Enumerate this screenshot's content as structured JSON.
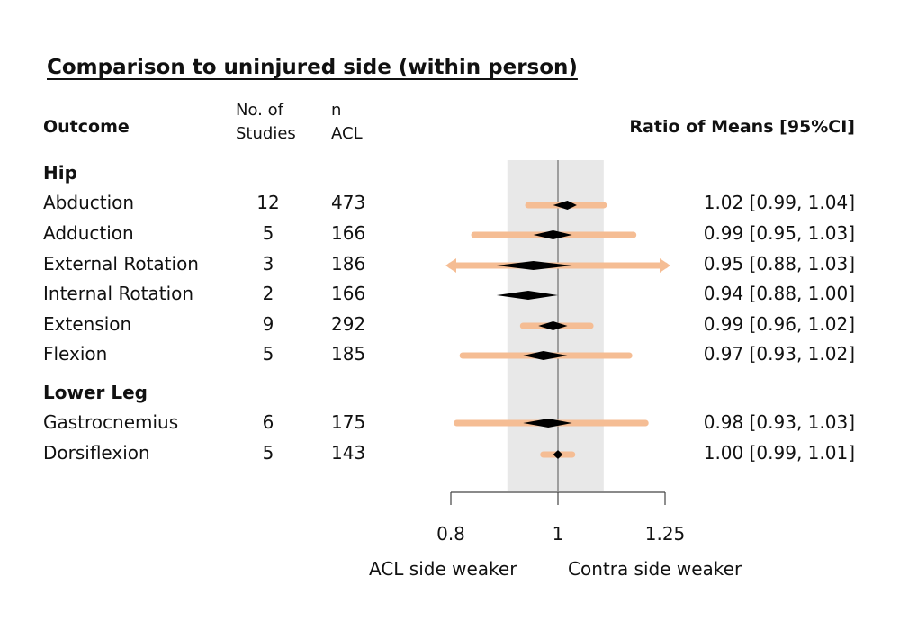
{
  "title": "Comparison to uninjured side (within person)",
  "headers": {
    "outcome": "Outcome",
    "studies_line1": "No. of",
    "studies_line2": "Studies",
    "n_line1": "n",
    "n_line2": "ACL",
    "ratio": "Ratio of Means [95%CI]"
  },
  "footer": {
    "left": "ACL side weaker",
    "right": "Contra side weaker"
  },
  "colors": {
    "ci_bar": "#f5bd94",
    "shade": "#e8e8e8",
    "diamond": "#000000"
  },
  "chart_data": {
    "type": "forest",
    "x_scale": "log",
    "x_ticks": [
      0.8,
      1,
      1.25
    ],
    "x_tick_labels": [
      "0.8",
      "1",
      "1.25"
    ],
    "reference_line": 1,
    "shaded_region": [
      0.9,
      1.1
    ],
    "sections": [
      {
        "name": "Hip",
        "rows": [
          {
            "outcome": "Abduction",
            "studies": "12",
            "n": "473",
            "ratio_text": "1.02 [0.99, 1.04]",
            "est": 1.02,
            "lo": 0.99,
            "hi": 1.04,
            "pi": [
              0.94,
              1.1
            ],
            "arrows": false
          },
          {
            "outcome": "Adduction",
            "studies": "5",
            "n": "166",
            "ratio_text": "0.99 [0.95, 1.03]",
            "est": 0.99,
            "lo": 0.95,
            "hi": 1.03,
            "pi": [
              0.84,
              1.17
            ],
            "arrows": false
          },
          {
            "outcome": "External Rotation",
            "studies": "3",
            "n": "186",
            "ratio_text": "0.95 [0.88, 1.03]",
            "est": 0.95,
            "lo": 0.88,
            "hi": 1.03,
            "pi": [
              0.8,
              1.25
            ],
            "arrows": true
          },
          {
            "outcome": "Internal Rotation",
            "studies": "2",
            "n": "166",
            "ratio_text": "0.94 [0.88, 1.00]",
            "est": 0.94,
            "lo": 0.88,
            "hi": 1.0,
            "pi": null,
            "arrows": false
          },
          {
            "outcome": "Extension",
            "studies": "9",
            "n": "292",
            "ratio_text": "0.99 [0.96, 1.02]",
            "est": 0.99,
            "lo": 0.96,
            "hi": 1.02,
            "pi": [
              0.93,
              1.07
            ],
            "arrows": false
          },
          {
            "outcome": "Flexion",
            "studies": "5",
            "n": "185",
            "ratio_text": "0.97 [0.93, 1.02]",
            "est": 0.97,
            "lo": 0.93,
            "hi": 1.02,
            "pi": [
              0.82,
              1.16
            ],
            "arrows": false
          }
        ]
      },
      {
        "name": "Lower Leg",
        "rows": [
          {
            "outcome": "Gastrocnemius",
            "studies": "6",
            "n": "175",
            "ratio_text": "0.98 [0.93, 1.03]",
            "est": 0.98,
            "lo": 0.93,
            "hi": 1.03,
            "pi": [
              0.81,
              1.2
            ],
            "arrows": false
          },
          {
            "outcome": "Dorsiflexion",
            "studies": "5",
            "n": "143",
            "ratio_text": "1.00 [0.99, 1.01]",
            "est": 1.0,
            "lo": 0.99,
            "hi": 1.01,
            "pi": [
              0.97,
              1.03
            ],
            "arrows": false
          }
        ]
      }
    ]
  }
}
